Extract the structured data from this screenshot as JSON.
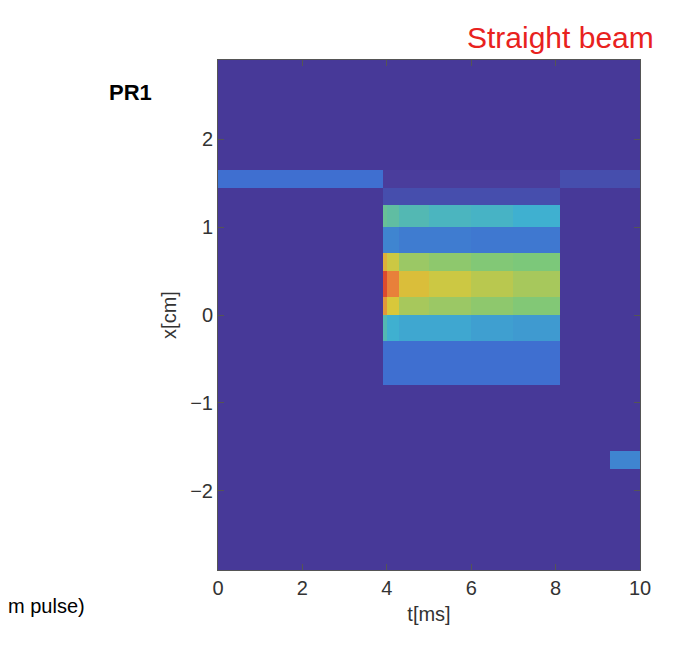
{
  "chart_data": {
    "type": "heatmap",
    "title": "Straight beam",
    "annotations": [
      "PR1",
      "m pulse)"
    ],
    "x_label": "t[ms]",
    "y_label": "x[cm]",
    "x_edges": [
      0,
      3.9,
      4.0,
      4.3,
      5,
      6,
      7,
      8.1,
      9.3,
      10
    ],
    "y_edges": [
      -2.9,
      -2.5,
      -1.75,
      -1.55,
      -0.8,
      -0.3,
      0,
      0.2,
      0.5,
      0.7,
      1.0,
      1.25,
      1.45,
      1.65,
      2.5,
      2.9
    ],
    "z": [
      [
        0.08,
        0.08,
        0.08,
        0.08,
        0.08,
        0.08,
        0.08,
        0.08,
        0.08
      ],
      [
        0.08,
        0.08,
        0.08,
        0.08,
        0.08,
        0.08,
        0.08,
        0.08,
        0.08
      ],
      [
        0.08,
        0.08,
        0.08,
        0.08,
        0.08,
        0.08,
        0.08,
        0.08,
        0.3
      ],
      [
        0.08,
        0.08,
        0.08,
        0.08,
        0.08,
        0.08,
        0.08,
        0.08,
        0.08
      ],
      [
        0.08,
        0.25,
        0.25,
        0.25,
        0.25,
        0.25,
        0.25,
        0.08,
        0.08
      ],
      [
        0.08,
        0.45,
        0.4,
        0.38,
        0.38,
        0.36,
        0.35,
        0.08,
        0.08
      ],
      [
        0.08,
        0.8,
        0.7,
        0.62,
        0.6,
        0.58,
        0.56,
        0.08,
        0.08
      ],
      [
        0.08,
        0.95,
        0.85,
        0.72,
        0.68,
        0.65,
        0.62,
        0.08,
        0.08
      ],
      [
        0.08,
        0.75,
        0.68,
        0.6,
        0.58,
        0.56,
        0.55,
        0.08,
        0.08
      ],
      [
        0.08,
        0.3,
        0.3,
        0.28,
        0.28,
        0.27,
        0.27,
        0.08,
        0.08
      ],
      [
        0.08,
        0.5,
        0.48,
        0.45,
        0.43,
        0.42,
        0.4,
        0.08,
        0.08
      ],
      [
        0.08,
        0.15,
        0.15,
        0.15,
        0.15,
        0.15,
        0.15,
        0.08,
        0.08
      ],
      [
        0.25,
        0.1,
        0.1,
        0.1,
        0.1,
        0.1,
        0.1,
        0.15,
        0.15
      ],
      [
        0.08,
        0.08,
        0.08,
        0.08,
        0.08,
        0.08,
        0.08,
        0.08,
        0.08
      ],
      [
        0.08,
        0.08,
        0.08,
        0.08,
        0.08,
        0.08,
        0.08,
        0.08,
        0.08
      ]
    ],
    "zlim": [
      0,
      1
    ],
    "xlim": [
      0,
      10
    ],
    "ylim": [
      -2.9,
      2.9
    ],
    "xticks": [
      0,
      2,
      4,
      6,
      8,
      10
    ],
    "yticks": [
      -2,
      -1,
      0,
      1,
      2
    ]
  }
}
